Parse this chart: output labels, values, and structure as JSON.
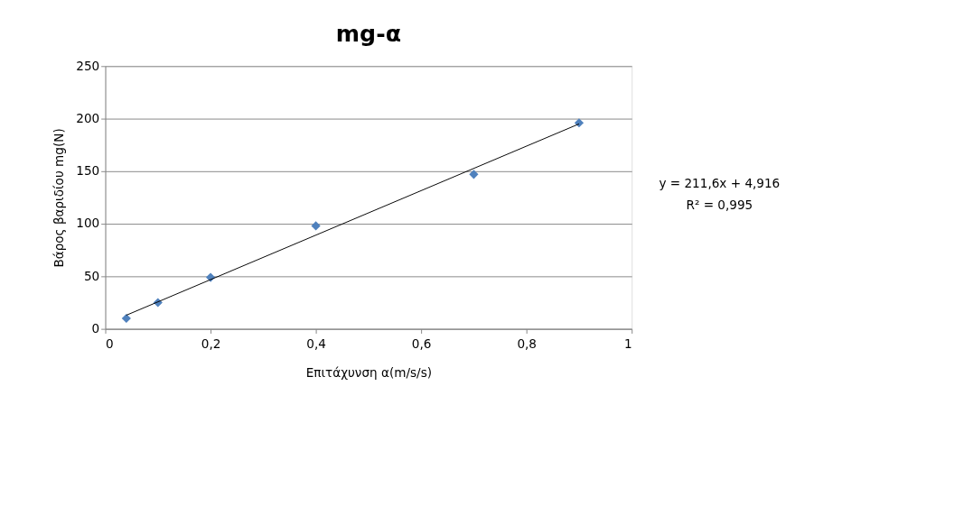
{
  "chart_data": {
    "type": "scatter",
    "title": "mg-α",
    "xlabel": "Επιτάχυνση α(m/s/s)",
    "ylabel": "Βάρος βαριδίου mg(N)",
    "x": [
      0.04,
      0.1,
      0.2,
      0.4,
      0.7,
      0.9
    ],
    "series": [
      {
        "color": "#4f81bd",
        "values": [
          10,
          25,
          49,
          98,
          147,
          196
        ]
      },
      {
        "type": "line",
        "marker": "none",
        "color": "#000000",
        "x": [
          0.04,
          0.9
        ],
        "values": [
          13,
          195
        ]
      }
    ],
    "xlim": [
      0,
      1
    ],
    "ylim": [
      0,
      250
    ],
    "xticks": [
      0,
      {
        "value": 0.2,
        "label": "0,2"
      },
      {
        "value": 0.4,
        "label": "0,4"
      },
      {
        "value": 0.6,
        "label": "0,6"
      },
      {
        "value": 0.8,
        "label": "0,8"
      },
      1
    ],
    "yticks": [
      0,
      50,
      100,
      150,
      200,
      250
    ],
    "grid": "y",
    "marker": "diamond",
    "annotations": [
      "y = 211,6x + 4,916",
      "R² = 0,995"
    ]
  }
}
